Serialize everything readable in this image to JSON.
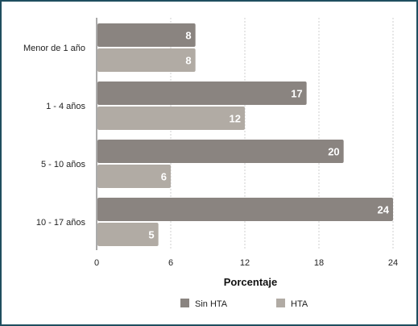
{
  "chart_data": {
    "type": "bar",
    "orientation": "horizontal",
    "categories": [
      "Menor de 1 año",
      "1 - 4 años",
      "5 - 10 años",
      "10 - 17 años"
    ],
    "series": [
      {
        "name": "Sin HTA",
        "values": [
          8,
          17,
          20,
          24
        ],
        "color": "#8a8480"
      },
      {
        "name": "HTA",
        "values": [
          8,
          12,
          6,
          5
        ],
        "color": "#b1aba4"
      }
    ],
    "xlabel": "Porcentaje",
    "ylabel": "",
    "xlim": [
      0,
      24
    ],
    "xticks": [
      0,
      6,
      12,
      18,
      24
    ],
    "grid": "vertical-dashed",
    "legend_position": "bottom",
    "data_labels": true
  }
}
